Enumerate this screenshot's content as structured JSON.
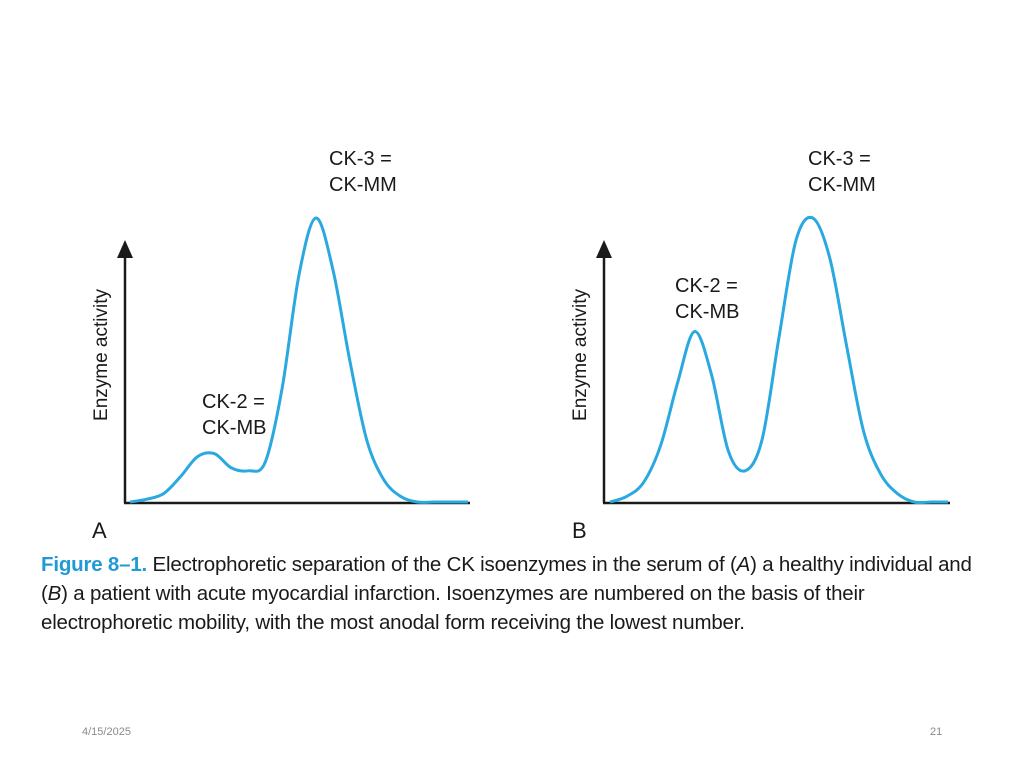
{
  "colors": {
    "curve": "#2aa8e0",
    "axis": "#1a1a1a",
    "caption_accent": "#1f9ad6"
  },
  "chart_data": [
    {
      "type": "line",
      "panel_label": "A",
      "ylabel": "Enzyme activity",
      "x": [
        0.0,
        0.05,
        0.1,
        0.15,
        0.2,
        0.25,
        0.3,
        0.35,
        0.4,
        0.45,
        0.5,
        0.55,
        0.6,
        0.65,
        0.7,
        0.75,
        0.8,
        0.85,
        0.9,
        0.95,
        1.0
      ],
      "series": [
        {
          "values": [
            0.0,
            0.01,
            0.03,
            0.09,
            0.16,
            0.17,
            0.12,
            0.11,
            0.14,
            0.4,
            0.8,
            1.0,
            0.82,
            0.5,
            0.22,
            0.08,
            0.02,
            0.0,
            0.0,
            0.0,
            0.0
          ]
        }
      ],
      "peaks": [
        {
          "line1": "CK-2 =",
          "line2": "CK-MB"
        },
        {
          "line1": "CK-3 =",
          "line2": "CK-MM"
        }
      ]
    },
    {
      "type": "line",
      "panel_label": "B",
      "ylabel": "Enzyme activity",
      "x": [
        0.0,
        0.05,
        0.1,
        0.15,
        0.2,
        0.25,
        0.3,
        0.35,
        0.4,
        0.45,
        0.5,
        0.55,
        0.6,
        0.65,
        0.7,
        0.75,
        0.8,
        0.85,
        0.9,
        0.95,
        1.0
      ],
      "series": [
        {
          "values": [
            0.0,
            0.02,
            0.07,
            0.2,
            0.42,
            0.6,
            0.45,
            0.18,
            0.11,
            0.22,
            0.58,
            0.92,
            1.0,
            0.86,
            0.55,
            0.25,
            0.1,
            0.03,
            0.0,
            0.0,
            0.0
          ]
        }
      ],
      "peaks": [
        {
          "line1": "CK-2 =",
          "line2": "CK-MB"
        },
        {
          "line1": "CK-3 =",
          "line2": "CK-MM"
        }
      ]
    }
  ],
  "caption": {
    "figure_label": "Figure 8–1.",
    "text_1": " Electrophoretic separation of the CK isoenzymes in the serum of (",
    "ref_a": "A",
    "text_2": ") a healthy individual and (",
    "ref_b": "B",
    "text_3": ") a patient with acute myocardial infarction. Isoenzymes are numbered on the basis of their electrophoretic mobility, with the most anodal form receiving the lowest number."
  },
  "footer": {
    "date": "4/15/2025",
    "page_number": "21"
  }
}
